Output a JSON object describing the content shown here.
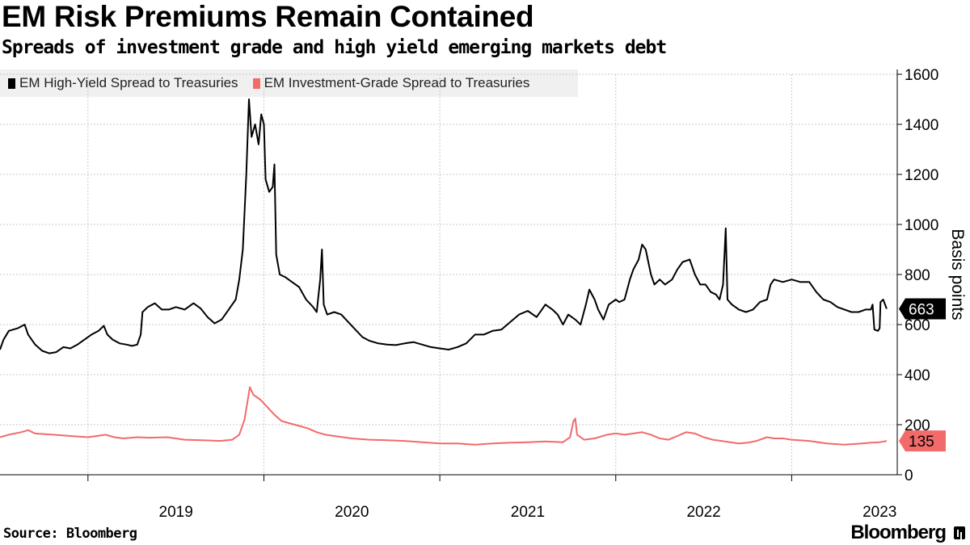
{
  "header": {
    "title": "EM Risk Premiums Remain Contained",
    "subtitle": "Spreads of investment grade and high yield emerging markets debt"
  },
  "footer": {
    "source": "Source: Bloomberg",
    "brand": "Bloomberg"
  },
  "colors": {
    "hy": "#000000",
    "ig": "#f26a6a",
    "grid": "#c8c8c8"
  },
  "chart_data": {
    "type": "line",
    "title": "EM Risk Premiums Remain Contained",
    "ylabel": "Basis points",
    "xlabel": "",
    "ylim": [
      0,
      1600
    ],
    "xlim": [
      2018.5,
      2023.6
    ],
    "yticks": [
      0,
      200,
      400,
      600,
      800,
      1000,
      1200,
      1400,
      1600
    ],
    "xticks": [
      {
        "label": "2019",
        "at": 2019.5
      },
      {
        "label": "2020",
        "at": 2020.5
      },
      {
        "label": "2021",
        "at": 2021.5
      },
      {
        "label": "2022",
        "at": 2022.5
      },
      {
        "label": "2023",
        "at": 2023.5
      }
    ],
    "year_boundaries": [
      2019,
      2020,
      2021,
      2022,
      2023
    ],
    "legend_position": "top-left",
    "series": [
      {
        "name": "EM High-Yield Spread to Treasuries",
        "color": "#000000",
        "last_value": "663",
        "points": [
          [
            2018.5,
            500
          ],
          [
            2018.52,
            540
          ],
          [
            2018.55,
            575
          ],
          [
            2018.6,
            585
          ],
          [
            2018.64,
            600
          ],
          [
            2018.66,
            560
          ],
          [
            2018.7,
            520
          ],
          [
            2018.74,
            495
          ],
          [
            2018.78,
            485
          ],
          [
            2018.82,
            490
          ],
          [
            2018.86,
            510
          ],
          [
            2018.9,
            505
          ],
          [
            2018.94,
            520
          ],
          [
            2018.98,
            540
          ],
          [
            2019.02,
            560
          ],
          [
            2019.06,
            575
          ],
          [
            2019.09,
            595
          ],
          [
            2019.11,
            560
          ],
          [
            2019.14,
            540
          ],
          [
            2019.18,
            525
          ],
          [
            2019.22,
            520
          ],
          [
            2019.25,
            515
          ],
          [
            2019.28,
            520
          ],
          [
            2019.3,
            560
          ],
          [
            2019.31,
            650
          ],
          [
            2019.34,
            670
          ],
          [
            2019.38,
            685
          ],
          [
            2019.42,
            660
          ],
          [
            2019.46,
            660
          ],
          [
            2019.5,
            670
          ],
          [
            2019.55,
            660
          ],
          [
            2019.6,
            685
          ],
          [
            2019.64,
            665
          ],
          [
            2019.68,
            630
          ],
          [
            2019.72,
            605
          ],
          [
            2019.76,
            620
          ],
          [
            2019.8,
            660
          ],
          [
            2019.84,
            700
          ],
          [
            2019.86,
            780
          ],
          [
            2019.88,
            900
          ],
          [
            2019.9,
            1200
          ],
          [
            2019.915,
            1500
          ],
          [
            2019.93,
            1350
          ],
          [
            2019.95,
            1400
          ],
          [
            2019.97,
            1320
          ],
          [
            2019.985,
            1440
          ],
          [
            2020.0,
            1400
          ],
          [
            2020.01,
            1180
          ],
          [
            2020.03,
            1130
          ],
          [
            2020.05,
            1150
          ],
          [
            2020.06,
            1240
          ],
          [
            2020.07,
            880
          ],
          [
            2020.09,
            800
          ],
          [
            2020.12,
            790
          ],
          [
            2020.16,
            770
          ],
          [
            2020.2,
            750
          ],
          [
            2020.24,
            700
          ],
          [
            2020.28,
            670
          ],
          [
            2020.3,
            650
          ],
          [
            2020.32,
            780
          ],
          [
            2020.33,
            900
          ],
          [
            2020.34,
            680
          ],
          [
            2020.36,
            640
          ],
          [
            2020.4,
            650
          ],
          [
            2020.44,
            640
          ],
          [
            2020.48,
            610
          ],
          [
            2020.52,
            580
          ],
          [
            2020.56,
            550
          ],
          [
            2020.6,
            535
          ],
          [
            2020.65,
            525
          ],
          [
            2020.7,
            520
          ],
          [
            2020.75,
            518
          ],
          [
            2020.8,
            525
          ],
          [
            2020.85,
            530
          ],
          [
            2020.9,
            520
          ],
          [
            2020.95,
            510
          ],
          [
            2021.0,
            505
          ],
          [
            2021.05,
            500
          ],
          [
            2021.1,
            510
          ],
          [
            2021.15,
            525
          ],
          [
            2021.2,
            560
          ],
          [
            2021.25,
            560
          ],
          [
            2021.3,
            575
          ],
          [
            2021.35,
            580
          ],
          [
            2021.4,
            610
          ],
          [
            2021.45,
            640
          ],
          [
            2021.5,
            655
          ],
          [
            2021.55,
            630
          ],
          [
            2021.58,
            660
          ],
          [
            2021.6,
            680
          ],
          [
            2021.64,
            660
          ],
          [
            2021.67,
            640
          ],
          [
            2021.7,
            600
          ],
          [
            2021.73,
            640
          ],
          [
            2021.77,
            620
          ],
          [
            2021.8,
            600
          ],
          [
            2021.83,
            680
          ],
          [
            2021.85,
            740
          ],
          [
            2021.88,
            700
          ],
          [
            2021.9,
            660
          ],
          [
            2021.93,
            620
          ],
          [
            2021.96,
            680
          ],
          [
            2022.0,
            700
          ],
          [
            2022.02,
            690
          ],
          [
            2022.05,
            700
          ],
          [
            2022.08,
            780
          ],
          [
            2022.1,
            820
          ],
          [
            2022.13,
            860
          ],
          [
            2022.15,
            920
          ],
          [
            2022.17,
            900
          ],
          [
            2022.2,
            800
          ],
          [
            2022.22,
            760
          ],
          [
            2022.25,
            780
          ],
          [
            2022.28,
            760
          ],
          [
            2022.32,
            780
          ],
          [
            2022.35,
            820
          ],
          [
            2022.38,
            850
          ],
          [
            2022.42,
            860
          ],
          [
            2022.45,
            800
          ],
          [
            2022.48,
            760
          ],
          [
            2022.51,
            760
          ],
          [
            2022.54,
            730
          ],
          [
            2022.57,
            720
          ],
          [
            2022.59,
            700
          ],
          [
            2022.61,
            760
          ],
          [
            2022.625,
            985
          ],
          [
            2022.635,
            700
          ],
          [
            2022.66,
            680
          ],
          [
            2022.7,
            660
          ],
          [
            2022.74,
            650
          ],
          [
            2022.78,
            660
          ],
          [
            2022.82,
            690
          ],
          [
            2022.86,
            700
          ],
          [
            2022.88,
            760
          ],
          [
            2022.9,
            780
          ],
          [
            2022.95,
            770
          ],
          [
            2023.0,
            780
          ],
          [
            2023.05,
            770
          ],
          [
            2023.1,
            770
          ],
          [
            2023.14,
            730
          ],
          [
            2023.18,
            700
          ],
          [
            2023.22,
            690
          ],
          [
            2023.26,
            670
          ],
          [
            2023.3,
            660
          ],
          [
            2023.34,
            650
          ],
          [
            2023.38,
            650
          ],
          [
            2023.42,
            660
          ],
          [
            2023.45,
            660
          ],
          [
            2023.46,
            680
          ],
          [
            2023.47,
            580
          ],
          [
            2023.49,
            575
          ],
          [
            2023.5,
            585
          ],
          [
            2023.505,
            690
          ],
          [
            2023.52,
            700
          ],
          [
            2023.54,
            663
          ]
        ]
      },
      {
        "name": "EM Investment-Grade Spread to Treasuries",
        "color": "#f26a6a",
        "last_value": "135",
        "points": [
          [
            2018.5,
            150
          ],
          [
            2018.55,
            160
          ],
          [
            2018.62,
            170
          ],
          [
            2018.66,
            178
          ],
          [
            2018.7,
            165
          ],
          [
            2018.8,
            160
          ],
          [
            2018.9,
            155
          ],
          [
            2019.0,
            150
          ],
          [
            2019.05,
            155
          ],
          [
            2019.1,
            160
          ],
          [
            2019.15,
            150
          ],
          [
            2019.2,
            145
          ],
          [
            2019.28,
            150
          ],
          [
            2019.35,
            148
          ],
          [
            2019.45,
            150
          ],
          [
            2019.55,
            140
          ],
          [
            2019.65,
            138
          ],
          [
            2019.75,
            135
          ],
          [
            2019.82,
            140
          ],
          [
            2019.86,
            160
          ],
          [
            2019.89,
            220
          ],
          [
            2019.92,
            350
          ],
          [
            2019.94,
            320
          ],
          [
            2019.98,
            300
          ],
          [
            2020.02,
            270
          ],
          [
            2020.06,
            240
          ],
          [
            2020.1,
            215
          ],
          [
            2020.15,
            205
          ],
          [
            2020.2,
            195
          ],
          [
            2020.25,
            185
          ],
          [
            2020.3,
            170
          ],
          [
            2020.35,
            160
          ],
          [
            2020.4,
            155
          ],
          [
            2020.45,
            150
          ],
          [
            2020.5,
            145
          ],
          [
            2020.6,
            140
          ],
          [
            2020.7,
            138
          ],
          [
            2020.8,
            135
          ],
          [
            2020.9,
            130
          ],
          [
            2021.0,
            125
          ],
          [
            2021.1,
            125
          ],
          [
            2021.2,
            120
          ],
          [
            2021.3,
            125
          ],
          [
            2021.4,
            128
          ],
          [
            2021.5,
            130
          ],
          [
            2021.6,
            133
          ],
          [
            2021.7,
            130
          ],
          [
            2021.74,
            150
          ],
          [
            2021.76,
            215
          ],
          [
            2021.77,
            225
          ],
          [
            2021.78,
            160
          ],
          [
            2021.82,
            140
          ],
          [
            2021.88,
            145
          ],
          [
            2021.95,
            160
          ],
          [
            2022.0,
            165
          ],
          [
            2022.05,
            160
          ],
          [
            2022.1,
            165
          ],
          [
            2022.15,
            170
          ],
          [
            2022.2,
            160
          ],
          [
            2022.25,
            145
          ],
          [
            2022.3,
            140
          ],
          [
            2022.35,
            155
          ],
          [
            2022.4,
            170
          ],
          [
            2022.45,
            165
          ],
          [
            2022.5,
            150
          ],
          [
            2022.55,
            140
          ],
          [
            2022.6,
            135
          ],
          [
            2022.65,
            130
          ],
          [
            2022.7,
            125
          ],
          [
            2022.75,
            128
          ],
          [
            2022.8,
            135
          ],
          [
            2022.86,
            150
          ],
          [
            2022.9,
            145
          ],
          [
            2022.95,
            145
          ],
          [
            2023.0,
            140
          ],
          [
            2023.1,
            135
          ],
          [
            2023.2,
            125
          ],
          [
            2023.3,
            120
          ],
          [
            2023.4,
            125
          ],
          [
            2023.45,
            128
          ],
          [
            2023.5,
            130
          ],
          [
            2023.54,
            135
          ]
        ]
      }
    ]
  }
}
